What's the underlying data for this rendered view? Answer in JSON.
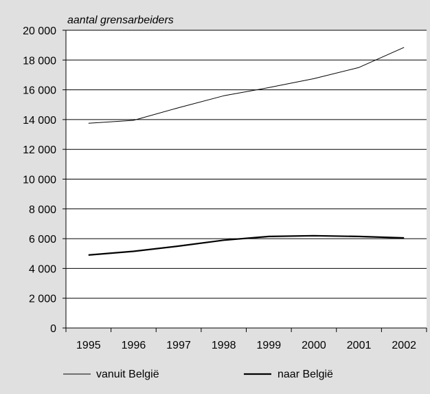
{
  "chart_data": {
    "type": "line",
    "title": "",
    "xlabel": "",
    "ylabel": "aantal grensarbeiders",
    "categories": [
      "1995",
      "1996",
      "1997",
      "1998",
      "1999",
      "2000",
      "2001",
      "2002"
    ],
    "ylim": [
      0,
      20000
    ],
    "yticks": [
      0,
      2000,
      4000,
      6000,
      8000,
      10000,
      12000,
      14000,
      16000,
      18000,
      20000
    ],
    "ytick_labels": [
      "0",
      "2 000",
      "4 000",
      "6 000",
      "8 000",
      "10 000",
      "12 000",
      "14 000",
      "16 000",
      "18 000",
      "20 000"
    ],
    "grid": "horizontal",
    "legend_position": "bottom",
    "series": [
      {
        "name": "vanuit België",
        "values": [
          13750,
          13950,
          14800,
          15600,
          16150,
          16750,
          17500,
          18850
        ],
        "color": "#000000",
        "style": "thin"
      },
      {
        "name": "naar België",
        "values": [
          4900,
          5150,
          5500,
          5900,
          6150,
          6200,
          6150,
          6050
        ],
        "color": "#000000",
        "style": "thick"
      }
    ]
  }
}
